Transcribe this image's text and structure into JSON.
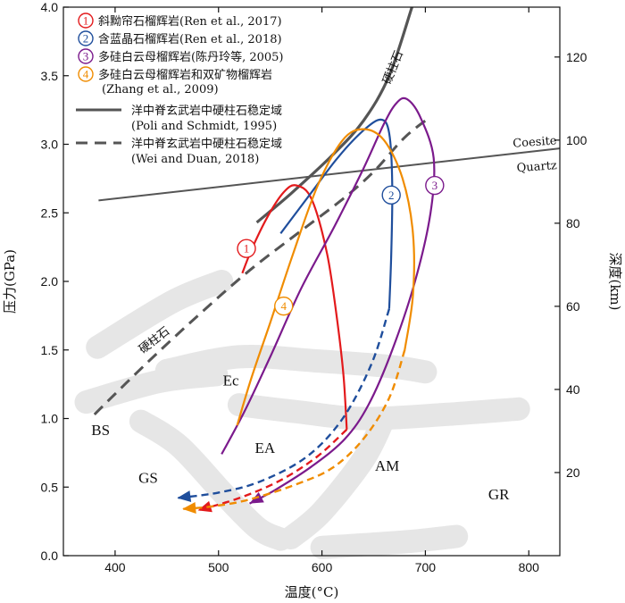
{
  "chart_data": {
    "type": "line",
    "xlabel": "温度(°C)",
    "ylabel": "压力(GPa)",
    "y2label": "深度(km)",
    "xlim": [
      350,
      830
    ],
    "ylim": [
      0,
      4.0
    ],
    "y2lim": [
      0,
      132
    ],
    "xticks": [
      400,
      500,
      600,
      700,
      800
    ],
    "yticks": [
      0.0,
      0.5,
      1.0,
      1.5,
      2.0,
      2.5,
      3.0,
      3.5,
      4.0
    ],
    "y2ticks": [
      20,
      40,
      60,
      80,
      100,
      120
    ],
    "colors": {
      "red": "#e31a1c",
      "blue": "#1f4e9c",
      "purple": "#7b1a8c",
      "orange": "#f08c00",
      "gray": "#555555",
      "watermark": "#e6e6e6"
    },
    "legend": [
      {
        "marker": "1",
        "color": "#e31a1c",
        "text": "斜黝帘石榴辉岩(Ren et al., 2017)"
      },
      {
        "marker": "2",
        "color": "#1f4e9c",
        "text": "含蓝晶石榴辉岩(Ren et al., 2018)"
      },
      {
        "marker": "3",
        "color": "#7b1a8c",
        "text": "多硅白云母榴辉岩(陈丹玲等, 2005)"
      },
      {
        "marker": "4",
        "color": "#f08c00",
        "text": "多硅白云母榴辉岩和双矿物榴辉岩",
        "text2": "(Zhang et al., 2009)"
      },
      {
        "style": "solid",
        "text": "洋中脊玄武岩中硬柱石稳定域",
        "text2": "(Poli and Schmidt, 1995)"
      },
      {
        "style": "dashed",
        "text": "洋中脊玄武岩中硬柱石稳定域",
        "text2": "(Wei and Duan, 2018)"
      }
    ],
    "series": [
      {
        "name": "1",
        "color": "#e31a1c",
        "points": [
          [
            523,
            2.06
          ],
          [
            533,
            2.25
          ],
          [
            548,
            2.48
          ],
          [
            563,
            2.65
          ],
          [
            575,
            2.7
          ],
          [
            590,
            2.6
          ],
          [
            605,
            2.2
          ],
          [
            615,
            1.7
          ],
          [
            621,
            1.3
          ],
          [
            624,
            0.92
          ]
        ],
        "retro": [
          [
            624,
            0.92
          ],
          [
            595,
            0.72
          ],
          [
            560,
            0.55
          ],
          [
            520,
            0.42
          ],
          [
            480,
            0.33
          ]
        ],
        "label_at": [
          527,
          2.24
        ]
      },
      {
        "name": "2",
        "color": "#1f4e9c",
        "points": [
          [
            560,
            2.35
          ],
          [
            590,
            2.65
          ],
          [
            615,
            2.9
          ],
          [
            640,
            3.1
          ],
          [
            657,
            3.18
          ],
          [
            665,
            3.08
          ],
          [
            668,
            2.7
          ],
          [
            667,
            2.2
          ],
          [
            665,
            1.8
          ]
        ],
        "retro": [
          [
            665,
            1.8
          ],
          [
            648,
            1.4
          ],
          [
            620,
            1.0
          ],
          [
            585,
            0.72
          ],
          [
            540,
            0.54
          ],
          [
            500,
            0.46
          ],
          [
            460,
            0.42
          ]
        ],
        "label_at": [
          667,
          2.63
        ]
      },
      {
        "name": "3",
        "color": "#7b1a8c",
        "points": [
          [
            503,
            0.74
          ],
          [
            525,
            1.05
          ],
          [
            550,
            1.45
          ],
          [
            580,
            1.95
          ],
          [
            612,
            2.4
          ],
          [
            640,
            2.82
          ],
          [
            660,
            3.15
          ],
          [
            672,
            3.3
          ],
          [
            682,
            3.33
          ],
          [
            695,
            3.2
          ],
          [
            708,
            2.9
          ],
          [
            705,
            2.5
          ],
          [
            690,
            2.0
          ],
          [
            668,
            1.5
          ],
          [
            645,
            1.1
          ],
          [
            622,
            0.85
          ],
          [
            590,
            0.65
          ],
          [
            555,
            0.48
          ],
          [
            530,
            0.38
          ]
        ],
        "label_at": [
          709,
          2.7
        ]
      },
      {
        "name": "4",
        "color": "#f08c00",
        "points": [
          [
            518,
            0.95
          ],
          [
            532,
            1.3
          ],
          [
            550,
            1.7
          ],
          [
            572,
            2.2
          ],
          [
            596,
            2.7
          ],
          [
            620,
            3.03
          ],
          [
            640,
            3.11
          ],
          [
            660,
            3.03
          ],
          [
            678,
            2.75
          ],
          [
            688,
            2.35
          ],
          [
            688,
            1.9
          ],
          [
            680,
            1.5
          ],
          [
            665,
            1.15
          ],
          [
            640,
            0.85
          ],
          [
            610,
            0.64
          ],
          [
            575,
            0.52
          ],
          [
            530,
            0.41
          ],
          [
            495,
            0.36
          ],
          [
            465,
            0.34
          ]
        ],
        "label_at": [
          563,
          1.82
        ]
      }
    ],
    "lines": [
      {
        "name": "lawsonite-poli",
        "style": "solid",
        "color": "#555555",
        "points": [
          [
            537,
            2.43
          ],
          [
            570,
            2.64
          ],
          [
            610,
            2.92
          ],
          [
            640,
            3.17
          ],
          [
            665,
            3.5
          ],
          [
            687,
            4.0
          ]
        ]
      },
      {
        "name": "lawsonite-wei",
        "style": "dashed",
        "color": "#555555",
        "points": [
          [
            380,
            1.03
          ],
          [
            430,
            1.4
          ],
          [
            480,
            1.75
          ],
          [
            530,
            2.08
          ],
          [
            580,
            2.37
          ],
          [
            620,
            2.6
          ],
          [
            650,
            2.8
          ],
          [
            680,
            3.05
          ],
          [
            705,
            3.2
          ]
        ]
      },
      {
        "name": "coesite-quartz",
        "style": "solid",
        "color": "#555555",
        "points": [
          [
            384,
            2.59
          ],
          [
            830,
            2.97
          ]
        ]
      }
    ],
    "annotations": [
      {
        "text": "硬柱石",
        "at": [
          672,
          3.55
        ],
        "rotate": -68
      },
      {
        "text": "硬柱石",
        "at": [
          440,
          1.55
        ],
        "rotate": -38
      },
      {
        "text": "Coesite",
        "at": [
          806,
          2.99
        ],
        "rotate": -4
      },
      {
        "text": "Quartz",
        "at": [
          808,
          2.81
        ],
        "rotate": -4
      }
    ],
    "fields": [
      {
        "text": "BS",
        "at": [
          386,
          0.88
        ]
      },
      {
        "text": "GS",
        "at": [
          432,
          0.53
        ]
      },
      {
        "text": "Ec",
        "at": [
          512,
          1.24
        ]
      },
      {
        "text": "EA",
        "at": [
          545,
          0.75
        ]
      },
      {
        "text": "AM",
        "at": [
          663,
          0.62
        ]
      },
      {
        "text": "GR",
        "at": [
          771,
          0.41
        ]
      }
    ]
  }
}
